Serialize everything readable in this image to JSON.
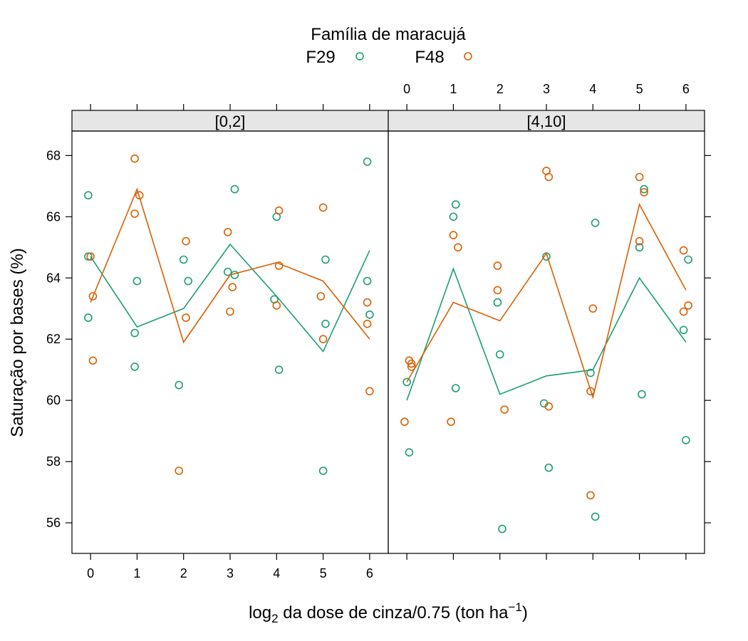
{
  "legend": {
    "title": "Família de maracujá",
    "entries": [
      {
        "label": "F29",
        "color": "#1b9e77"
      },
      {
        "label": "F48",
        "color": "#d95f02"
      }
    ]
  },
  "axes": {
    "ylabel": "Saturação por bases (%)",
    "xlabel_prefix": "log",
    "xlabel_sub": "2",
    "xlabel_middle": " da dose de cinza/0.75 (ton ha",
    "xlabel_sup": "−1",
    "xlabel_suffix": ")",
    "x_ticks": [
      "0",
      "1",
      "2",
      "3",
      "4",
      "5",
      "6"
    ],
    "y_ticks": [
      "56",
      "58",
      "60",
      "62",
      "64",
      "66",
      "68"
    ]
  },
  "chart_data": {
    "type": "scatter",
    "xlim": [
      -0.4,
      6.4
    ],
    "ylim": [
      55,
      68.8
    ],
    "x_ticks": [
      0,
      1,
      2,
      3,
      4,
      5,
      6
    ],
    "y_ticks": [
      56,
      58,
      60,
      62,
      64,
      66,
      68
    ],
    "grid": false,
    "legend_position": "top",
    "panels": [
      {
        "strip": "[0,2]",
        "series": [
          {
            "name": "F29",
            "points": [
              [
                -0.05,
                64.7
              ],
              [
                -0.05,
                62.7
              ],
              [
                -0.05,
                66.7
              ],
              [
                0.95,
                61.1
              ],
              [
                0.95,
                62.2
              ],
              [
                1.0,
                63.9
              ],
              [
                1.9,
                60.5
              ],
              [
                2.0,
                64.6
              ],
              [
                2.1,
                63.9
              ],
              [
                2.95,
                64.2
              ],
              [
                3.1,
                66.9
              ],
              [
                3.1,
                64.1
              ],
              [
                3.95,
                63.3
              ],
              [
                4.0,
                66.0
              ],
              [
                4.05,
                61.0
              ],
              [
                5.0,
                57.7
              ],
              [
                5.05,
                64.6
              ],
              [
                5.05,
                62.5
              ],
              [
                5.95,
                63.9
              ],
              [
                5.95,
                67.8
              ],
              [
                6.0,
                62.8
              ]
            ],
            "line": [
              [
                0,
                64.7
              ],
              [
                1,
                62.4
              ],
              [
                2,
                63.0
              ],
              [
                3,
                65.1
              ],
              [
                4,
                63.4
              ],
              [
                5,
                61.6
              ],
              [
                6,
                64.9
              ]
            ]
          },
          {
            "name": "F48",
            "points": [
              [
                0.0,
                64.7
              ],
              [
                0.05,
                63.4
              ],
              [
                0.05,
                61.3
              ],
              [
                0.95,
                67.9
              ],
              [
                0.95,
                66.1
              ],
              [
                1.05,
                66.7
              ],
              [
                1.9,
                57.7
              ],
              [
                2.05,
                65.2
              ],
              [
                2.05,
                62.7
              ],
              [
                2.95,
                65.5
              ],
              [
                3.0,
                62.9
              ],
              [
                3.05,
                63.7
              ],
              [
                4.0,
                63.1
              ],
              [
                4.05,
                66.2
              ],
              [
                4.05,
                64.4
              ],
              [
                4.95,
                63.4
              ],
              [
                5.0,
                62.0
              ],
              [
                5.0,
                66.3
              ],
              [
                5.95,
                63.2
              ],
              [
                5.95,
                62.5
              ],
              [
                6.0,
                60.3
              ]
            ],
            "line": [
              [
                0,
                63.2
              ],
              [
                1,
                66.9
              ],
              [
                2,
                61.9
              ],
              [
                3,
                64.1
              ],
              [
                4,
                64.5
              ],
              [
                5,
                63.9
              ],
              [
                6,
                62.0
              ]
            ]
          }
        ]
      },
      {
        "strip": "[4,10]",
        "series": [
          {
            "name": "F29",
            "points": [
              [
                0.0,
                60.6
              ],
              [
                0.05,
                58.3
              ],
              [
                1.0,
                66.0
              ],
              [
                1.05,
                66.4
              ],
              [
                1.05,
                60.4
              ],
              [
                1.95,
                63.2
              ],
              [
                2.0,
                61.5
              ],
              [
                2.05,
                55.8
              ],
              [
                2.95,
                59.9
              ],
              [
                3.0,
                64.7
              ],
              [
                3.05,
                57.8
              ],
              [
                3.95,
                60.9
              ],
              [
                4.05,
                65.8
              ],
              [
                4.05,
                56.2
              ],
              [
                5.0,
                65.0
              ],
              [
                5.05,
                60.2
              ],
              [
                5.1,
                66.9
              ],
              [
                5.95,
                62.3
              ],
              [
                6.0,
                58.7
              ],
              [
                6.05,
                64.6
              ]
            ],
            "line": [
              [
                0,
                60.0
              ],
              [
                1,
                64.3
              ],
              [
                2,
                60.2
              ],
              [
                3,
                60.8
              ],
              [
                4,
                61.0
              ],
              [
                5,
                64.0
              ],
              [
                6,
                61.9
              ]
            ]
          },
          {
            "name": "F48",
            "points": [
              [
                -0.05,
                59.3
              ],
              [
                0.05,
                61.3
              ],
              [
                0.1,
                61.1
              ],
              [
                0.1,
                61.2
              ],
              [
                0.95,
                59.3
              ],
              [
                1.0,
                65.4
              ],
              [
                1.1,
                65.0
              ],
              [
                1.95,
                64.4
              ],
              [
                1.95,
                63.6
              ],
              [
                2.1,
                59.7
              ],
              [
                3.0,
                67.5
              ],
              [
                3.05,
                67.3
              ],
              [
                3.05,
                59.8
              ],
              [
                3.95,
                60.3
              ],
              [
                4.0,
                63.0
              ],
              [
                3.95,
                56.9
              ],
              [
                5.0,
                65.2
              ],
              [
                5.0,
                67.3
              ],
              [
                5.1,
                66.8
              ],
              [
                5.95,
                62.9
              ],
              [
                5.95,
                64.9
              ],
              [
                6.05,
                63.1
              ]
            ],
            "line": [
              [
                0,
                60.6
              ],
              [
                1,
                63.2
              ],
              [
                2,
                62.6
              ],
              [
                3,
                64.8
              ],
              [
                4,
                60.1
              ],
              [
                5,
                66.4
              ],
              [
                6,
                63.6
              ]
            ]
          }
        ]
      }
    ]
  }
}
